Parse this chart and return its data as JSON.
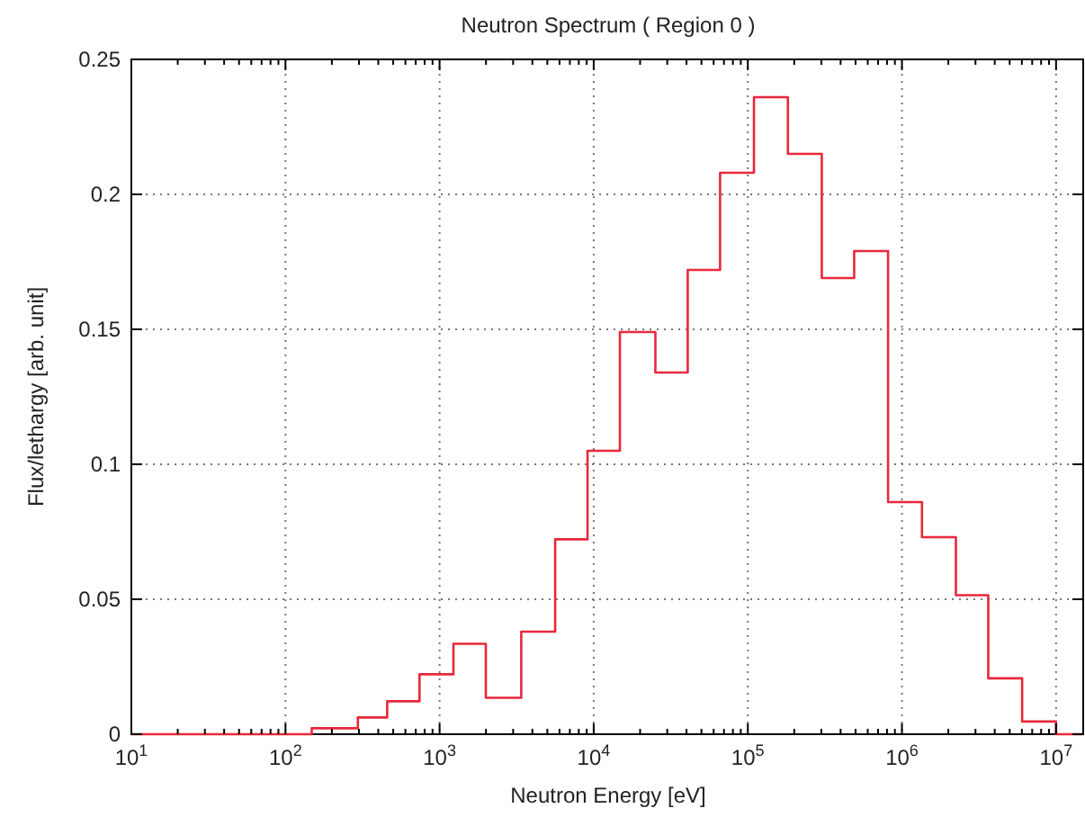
{
  "chart_data": {
    "type": "histogram",
    "title": "Neutron Spectrum  ( Region 0 )",
    "xlabel": "Neutron Energy [eV]",
    "ylabel": "Flux/lethargy [arb. unit]",
    "log": "x",
    "grid": true,
    "color": "#e8283c",
    "bins": [
      10,
      148,
      295,
      457,
      741,
      1230,
      1995,
      3388,
      5623,
      9120,
      14790,
      25120,
      40740,
      66070,
      109600,
      182000,
      302000,
      489800,
      812800,
      1349000,
      2239000,
      3631000,
      6026000,
      10000000,
      15000000
    ],
    "values": [
      0,
      0.0022,
      0.0062,
      0.0122,
      0.0222,
      0.0335,
      0.0135,
      0.038,
      0.0722,
      0.105,
      0.149,
      0.134,
      0.172,
      0.208,
      0.236,
      0.215,
      0.169,
      0.179,
      0.086,
      0.073,
      0.0515,
      0.0207,
      0.0047,
      0
    ],
    "xlim": [
      10,
      15000000
    ],
    "ylim": [
      0,
      0.25
    ],
    "xticks": [
      {
        "value": 10,
        "label": "10$^{1}$"
      },
      {
        "value": 20,
        "label": null
      },
      {
        "value": 30,
        "label": null
      },
      {
        "value": 40,
        "label": null
      },
      {
        "value": 50,
        "label": null
      },
      {
        "value": 60,
        "label": null
      },
      {
        "value": 70,
        "label": null
      },
      {
        "value": 80,
        "label": null
      },
      {
        "value": 90,
        "label": null
      },
      {
        "value": 100,
        "label": "10$^{2}$"
      },
      {
        "value": 200,
        "label": null
      },
      {
        "value": 300,
        "label": null
      },
      {
        "value": 400,
        "label": null
      },
      {
        "value": 500,
        "label": null
      },
      {
        "value": 600,
        "label": null
      },
      {
        "value": 700,
        "label": null
      },
      {
        "value": 800,
        "label": null
      },
      {
        "value": 900,
        "label": null
      },
      {
        "value": 1000,
        "label": "10$^{3}$"
      },
      {
        "value": 2000,
        "label": null
      },
      {
        "value": 3000,
        "label": null
      },
      {
        "value": 4000,
        "label": null
      },
      {
        "value": 5000,
        "label": null
      },
      {
        "value": 6000,
        "label": null
      },
      {
        "value": 7000,
        "label": null
      },
      {
        "value": 8000,
        "label": null
      },
      {
        "value": 9000,
        "label": null
      },
      {
        "value": 10000,
        "label": "10$^{4}$"
      },
      {
        "value": 20000,
        "label": null
      },
      {
        "value": 30000,
        "label": null
      },
      {
        "value": 40000,
        "label": null
      },
      {
        "value": 50000,
        "label": null
      },
      {
        "value": 60000,
        "label": null
      },
      {
        "value": 70000,
        "label": null
      },
      {
        "value": 80000,
        "label": null
      },
      {
        "value": 90000,
        "label": null
      },
      {
        "value": 100000,
        "label": "10$^{5}$"
      },
      {
        "value": 200000,
        "label": null
      },
      {
        "value": 300000,
        "label": null
      },
      {
        "value": 400000,
        "label": null
      },
      {
        "value": 500000,
        "label": null
      },
      {
        "value": 600000,
        "label": null
      },
      {
        "value": 700000,
        "label": null
      },
      {
        "value": 800000,
        "label": null
      },
      {
        "value": 900000,
        "label": null
      },
      {
        "value": 1000000,
        "label": "10$^{6}$"
      },
      {
        "value": 2000000,
        "label": null
      },
      {
        "value": 3000000,
        "label": null
      },
      {
        "value": 4000000,
        "label": null
      },
      {
        "value": 5000000,
        "label": null
      },
      {
        "value": 6000000,
        "label": null
      },
      {
        "value": 7000000,
        "label": null
      },
      {
        "value": 8000000,
        "label": null
      },
      {
        "value": 9000000,
        "label": null
      },
      {
        "value": 10000000,
        "label": "10$^{7}$"
      }
    ],
    "yticks": [
      0,
      0.05,
      0.1,
      0.15,
      0.2,
      0.25
    ]
  }
}
